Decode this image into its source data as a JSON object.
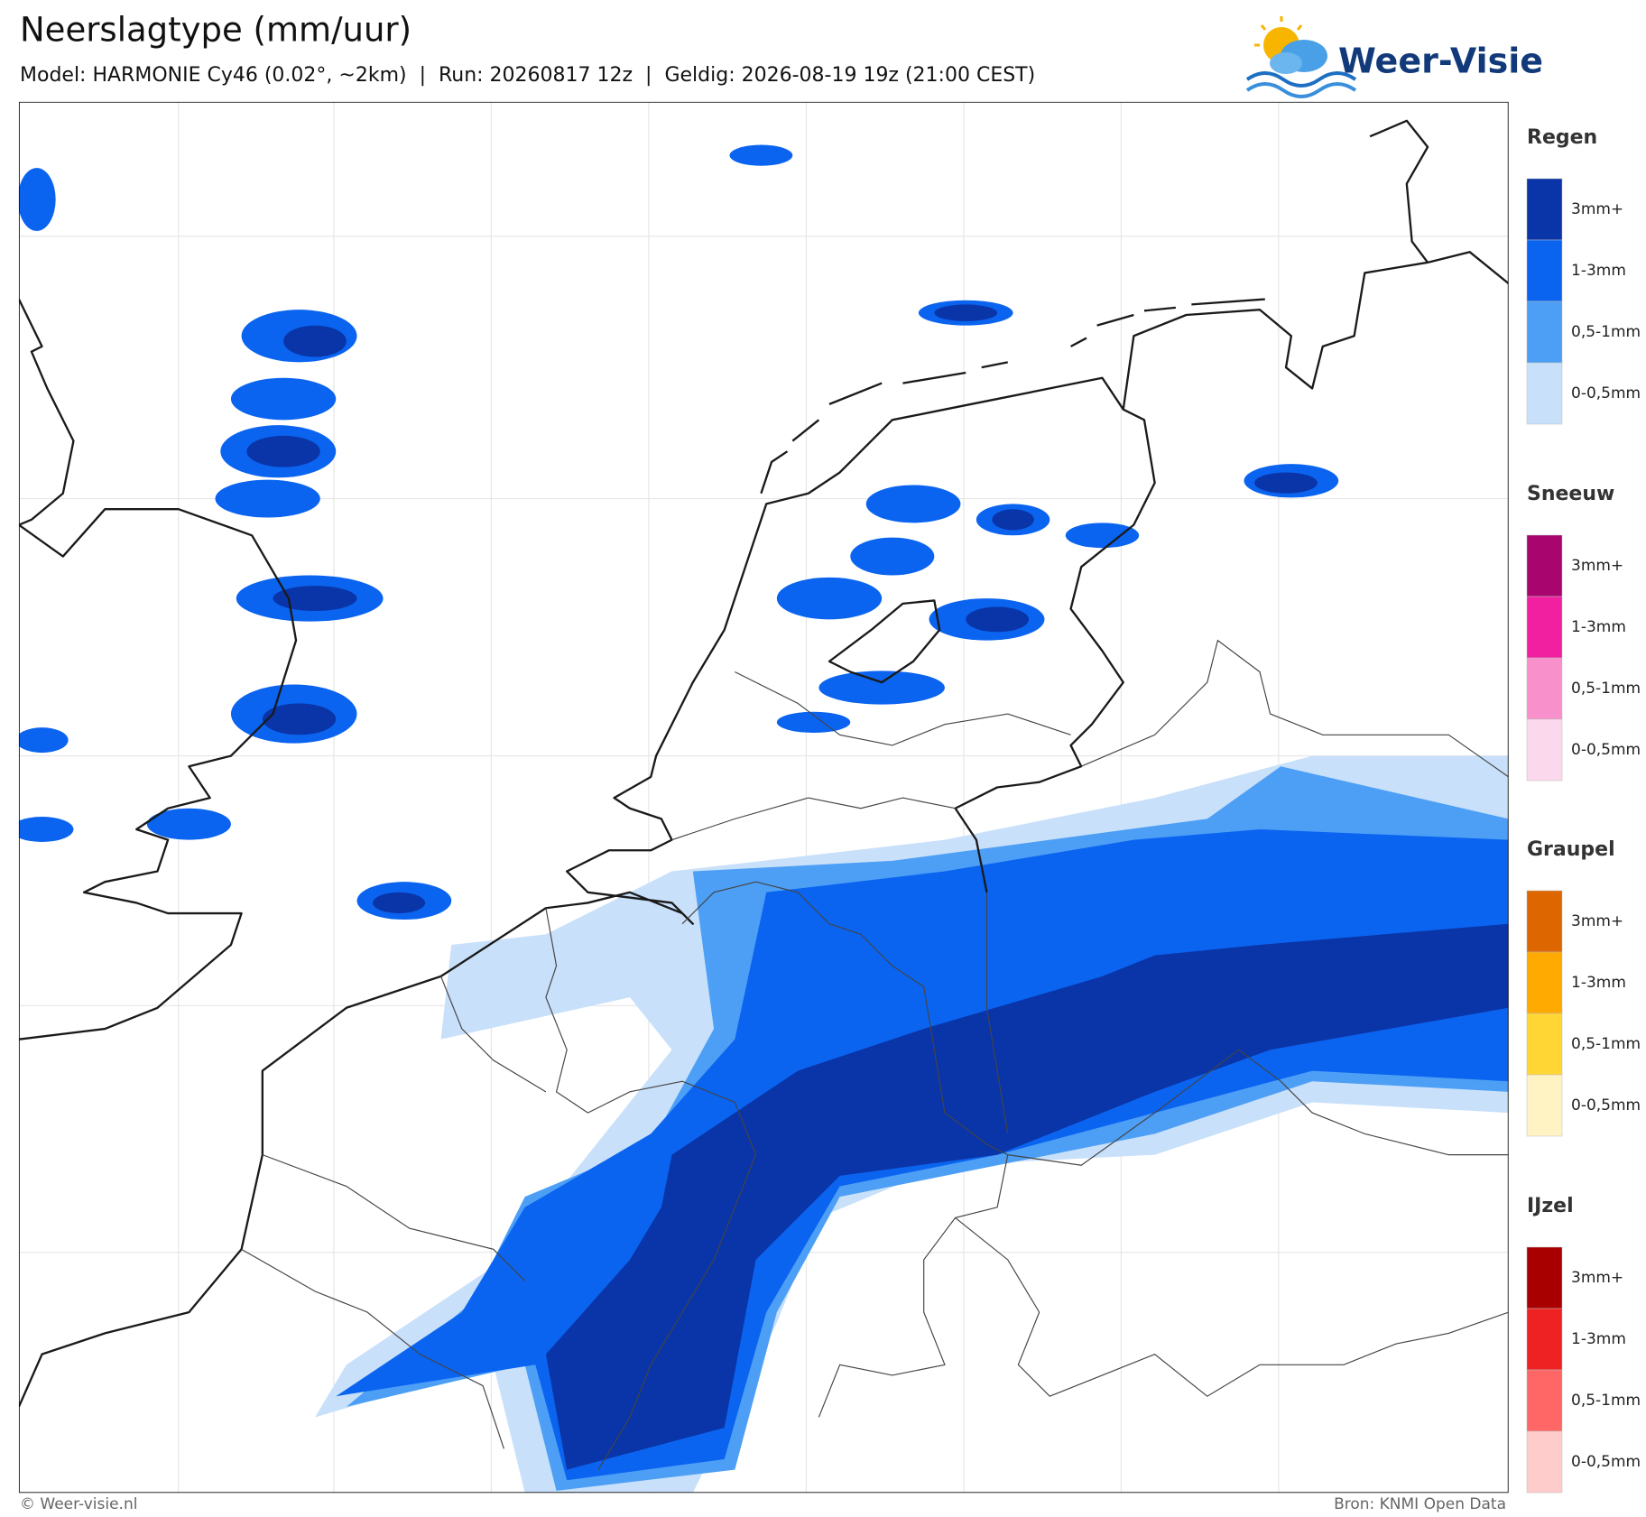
{
  "header": {
    "title": "Neerslagtype (mm/uur)",
    "subtitle": "Model: HARMONIE Cy46 (0.02°, ~2km)  |  Run: 20260817 12z  |  Geldig: 2026-08-19 19z (21:00 CEST)"
  },
  "logo": {
    "text": "Weer-Visie"
  },
  "legend": [
    {
      "title": "Regen",
      "items": [
        {
          "label": "3mm+",
          "color": "#0a35a8"
        },
        {
          "label": "1-3mm",
          "color": "#0a64f0"
        },
        {
          "label": "0,5-1mm",
          "color": "#4d9ff5"
        },
        {
          "label": "0-0,5mm",
          "color": "#c8e0fa"
        }
      ]
    },
    {
      "title": "Sneeuw",
      "items": [
        {
          "label": "3mm+",
          "color": "#a8066e"
        },
        {
          "label": "1-3mm",
          "color": "#f020a0"
        },
        {
          "label": "0,5-1mm",
          "color": "#f890cc"
        },
        {
          "label": "0-0,5mm",
          "color": "#fcd8ec"
        }
      ]
    },
    {
      "title": "Graupel",
      "items": [
        {
          "label": "3mm+",
          "color": "#dd6600"
        },
        {
          "label": "1-3mm",
          "color": "#ffaa00"
        },
        {
          "label": "0,5-1mm",
          "color": "#ffd633"
        },
        {
          "label": "0-0,5mm",
          "color": "#fff3c4"
        }
      ]
    },
    {
      "title": "IJzel",
      "items": [
        {
          "label": "3mm+",
          "color": "#a80000"
        },
        {
          "label": "1-3mm",
          "color": "#ee2222"
        },
        {
          "label": "0,5-1mm",
          "color": "#ff6666"
        },
        {
          "label": "0-0,5mm",
          "color": "#ffcccc"
        }
      ]
    }
  ],
  "footer": {
    "left": "© Weer-visie.nl",
    "right": "Bron: KNMI Open Data"
  }
}
